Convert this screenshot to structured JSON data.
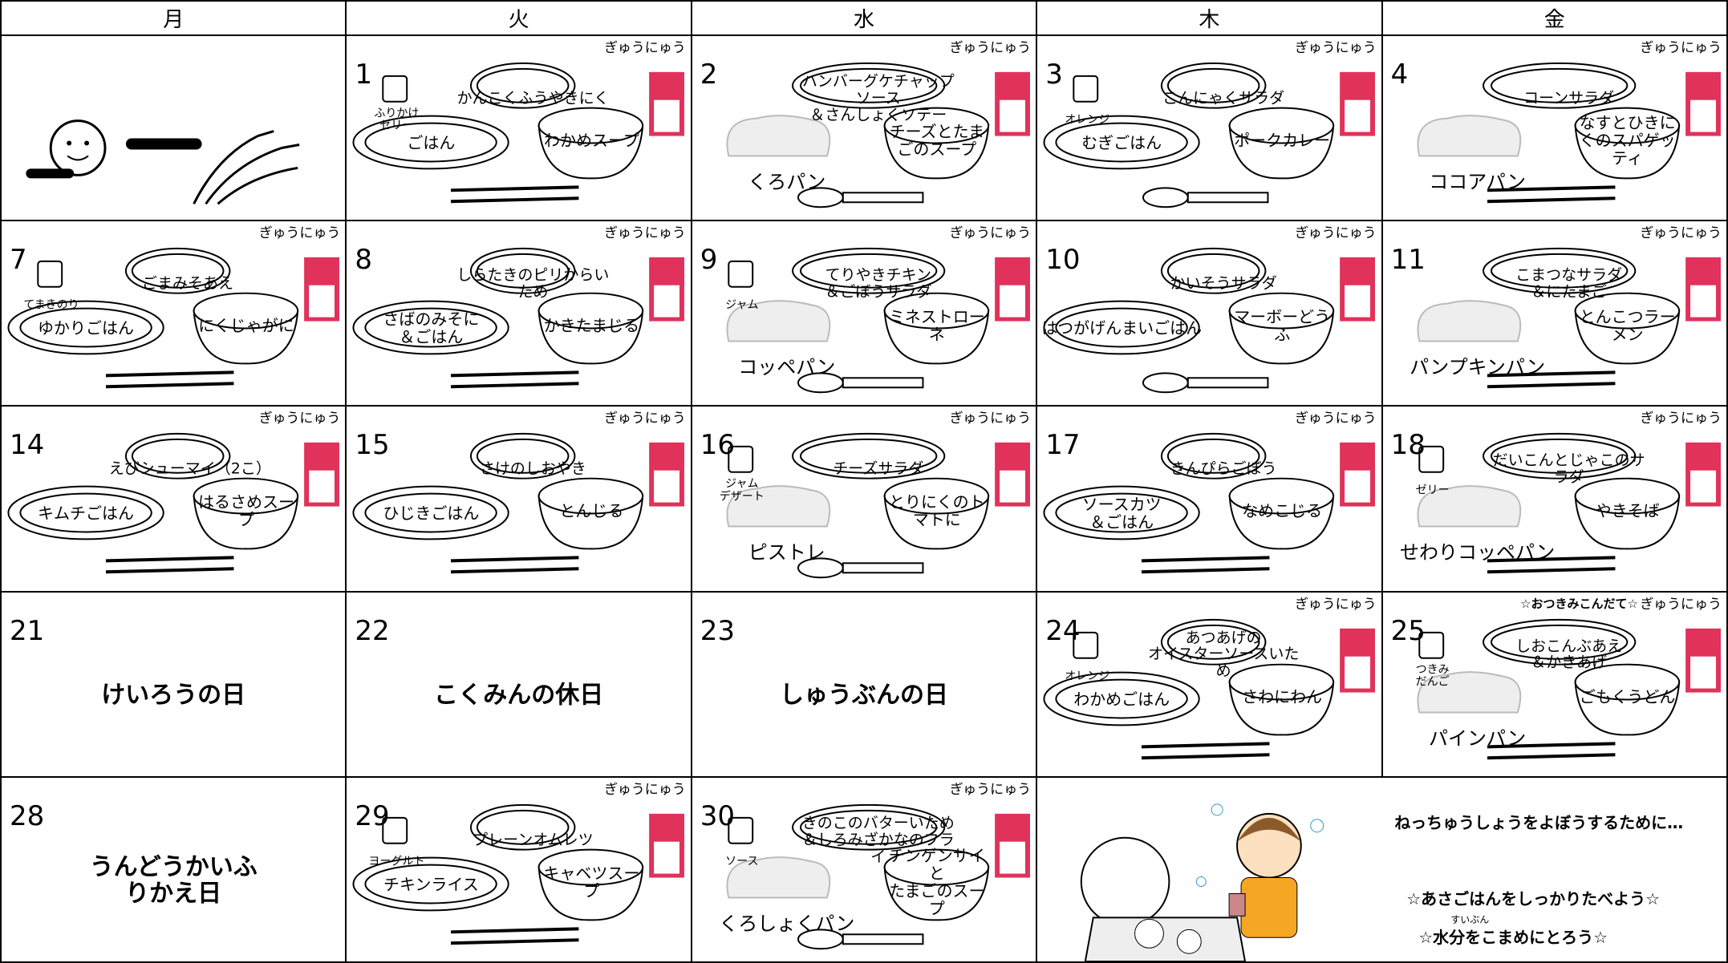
{
  "header": {
    "days": [
      "月",
      "火",
      "水",
      "木",
      "金"
    ]
  },
  "weeks": [
    [
      {
        "day": 1,
        "milk": "ぎゅうにゅう",
        "extra": "ふりかけ\nゼリー",
        "top": "かんこくふうやきにく",
        "left": "ごはん",
        "right": "わかめスープ"
      },
      {
        "day": 2,
        "milk": "ぎゅうにゅう",
        "top": "ハンバーグケチャップソース\n＆さんしょくソテー",
        "right": "チーズとたまごのスープ",
        "bread": "くろパン"
      },
      {
        "day": 3,
        "milk": "ぎゅうにゅう",
        "extra": "オレンジ",
        "top": "こんにゃくサラダ",
        "left": "むぎごはん",
        "right": "ポークカレー"
      },
      {
        "day": 4,
        "milk": "ぎゅうにゅう",
        "top": "コーンサラダ",
        "right": "なすとひきにくのスパゲッティ",
        "bread": "ココアパン"
      }
    ],
    [
      {
        "day": 7,
        "milk": "ぎゅうにゅう",
        "extra": "てまきのり",
        "top": "ごまみそあえ",
        "left": "ゆかりごはん",
        "right": "にくじゃがに"
      },
      {
        "day": 8,
        "milk": "ぎゅうにゅう",
        "top": "しらたきのピリからいため",
        "left": "さばのみそに\n＆ごはん",
        "right": "かきたまじる"
      },
      {
        "day": 9,
        "milk": "ぎゅうにゅう",
        "extra": "ジャム",
        "top": "てりやきチキン\n＆ごぼうサラダ",
        "right": "ミネストローネ",
        "bread": "コッペパン"
      },
      {
        "day": 10,
        "milk": "ぎゅうにゅう",
        "top": "かいそうサラダ",
        "left": "はつがげんまいごはん",
        "right": "マーボーどうふ"
      },
      {
        "day": 11,
        "milk": "ぎゅうにゅう",
        "top": "こまつなサラダ\n＆にたまご",
        "right": "とんこつラーメン",
        "bread": "パンプキンパン"
      }
    ],
    [
      {
        "day": 14,
        "milk": "ぎゅうにゅう",
        "top": "えびシューマイ（2こ）",
        "left": "キムチごはん",
        "right": "はるさめスープ"
      },
      {
        "day": 15,
        "milk": "ぎゅうにゅう",
        "top": "さけのしおやき",
        "left": "ひじきごはん",
        "right": "とんじる"
      },
      {
        "day": 16,
        "milk": "ぎゅうにゅう",
        "extra": "ジャム\nデザート",
        "top": "チーズサラダ",
        "right": "とりにくのトマトに",
        "bread": "ピストレ"
      },
      {
        "day": 17,
        "milk": "ぎゅうにゅう",
        "top": "きんぴらごぼう",
        "left": "ソースカツ\n＆ごはん",
        "right": "なめこじる"
      },
      {
        "day": 18,
        "milk": "ぎゅうにゅう",
        "extra": "ゼリー",
        "top": "だいこんとじゃこのサラダ",
        "right": "やきそば",
        "bread": "せわりコッペパン"
      }
    ],
    [
      {
        "day": 21,
        "holiday": "けいろうの日"
      },
      {
        "day": 22,
        "holiday": "こくみんの休日"
      },
      {
        "day": 23,
        "holiday": "しゅうぶんの日"
      },
      {
        "day": 24,
        "milk": "ぎゅうにゅう",
        "extra": "オレンジ",
        "top": "あつあげの\nオイスターソースいため",
        "left": "わかめごはん",
        "right": "さわにわん"
      },
      {
        "day": 25,
        "milk": "ぎゅうにゅう",
        "note": "☆おつきみこんだて☆",
        "extra": "つきみ\nだんご",
        "top": "しおこんぶあえ\n＆かきあげ",
        "right": "ごもくうどん",
        "bread": "パインパン"
      }
    ],
    [
      {
        "day": 28,
        "holiday": "うんどうかいふりかえ日"
      },
      {
        "day": 29,
        "milk": "ぎゅうにゅう",
        "extra": "ヨーグルト",
        "top": "プレーンオムレツ",
        "left": "チキンライス",
        "right": "キャベツスープ"
      },
      {
        "day": 30,
        "milk": "ぎゅうにゅう",
        "extra": "ソース",
        "top": "きのこのバターいため\n＆しろみざかなのフライ",
        "right": "チンゲンサイと\nたまごのスープ",
        "bread": "くろしょくパン"
      }
    ]
  ],
  "message": {
    "heading": "ねっちゅうしょうをよぼうするために…",
    "line1": "☆あさごはんをしっかりたべよう☆",
    "ruby": "すいぶん",
    "line2": "☆水分をこまめにとろう☆"
  }
}
